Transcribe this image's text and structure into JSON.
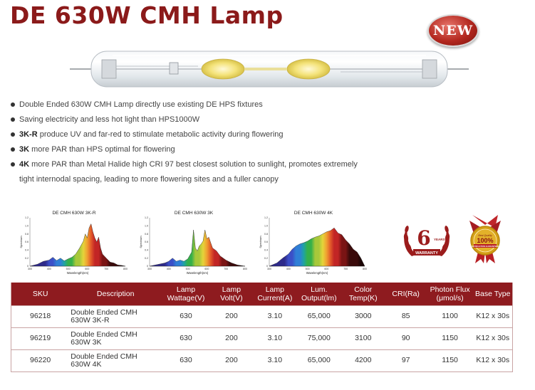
{
  "header": {
    "title": "DE 630W CMH Lamp",
    "badge": "NEW"
  },
  "features": [
    {
      "bold": "",
      "text": "Double Ended 630W CMH Lamp directly use existing DE HPS fixtures"
    },
    {
      "bold": "",
      "text": "Saving electricity and less hot light than HPS1000W"
    },
    {
      "bold": "3K-R",
      "text": " produce UV and far-red to stimulate metabolic activity during flowering"
    },
    {
      "bold": "3K",
      "text": " more PAR than HPS optimal for flowering"
    },
    {
      "bold": "4K",
      "text": " more PAR than Metal Halide high CRI 97 best closest solution to sunlight, promotes extremely"
    }
  ],
  "feature_continuation": "tight internodal spacing, leading to more flowering sites and a fuller canopy",
  "badges": {
    "warranty_number": "6",
    "warranty_unit": "YEARS",
    "warranty_text": "WARRANTY",
    "quality_top": "Best Quality",
    "quality_pct": "100%",
    "quality_bottom": "SATISFACTION GUARANTEED"
  },
  "chart_data": [
    {
      "type": "area",
      "title": "DE CMH 630W 3K-R",
      "xlabel": "Wavelength(nm)",
      "ylabel": "Spectrum",
      "x_ticks": [
        300,
        400,
        500,
        600,
        700,
        800
      ],
      "y_ticks": [
        "0",
        "0.2",
        "0.4",
        "0.6",
        "0.8",
        "1.0",
        "1.2"
      ],
      "xlim": [
        300,
        800
      ],
      "ylim": [
        0,
        1.2
      ],
      "x": [
        300,
        340,
        370,
        400,
        420,
        440,
        460,
        480,
        500,
        520,
        540,
        560,
        580,
        590,
        600,
        610,
        620,
        630,
        640,
        650,
        660,
        670,
        680,
        700,
        720,
        740,
        760,
        780,
        800
      ],
      "y": [
        0.0,
        0.05,
        0.12,
        0.15,
        0.22,
        0.14,
        0.2,
        0.13,
        0.18,
        0.22,
        0.3,
        0.45,
        0.62,
        0.8,
        0.7,
        0.95,
        1.05,
        0.85,
        0.7,
        0.6,
        0.72,
        0.45,
        0.3,
        0.2,
        0.1,
        0.08,
        0.03,
        0.02,
        0.0
      ]
    },
    {
      "type": "area",
      "title": "DE CMH 630W 3K",
      "xlabel": "Wavelength(nm)",
      "ylabel": "Spectrum",
      "x_ticks": [
        300,
        400,
        500,
        600,
        700,
        800
      ],
      "y_ticks": [
        "0",
        "0.2",
        "0.4",
        "0.6",
        "0.8",
        "1.0",
        "1.2"
      ],
      "xlim": [
        300,
        800
      ],
      "ylim": [
        0,
        1.2
      ],
      "x": [
        300,
        340,
        380,
        400,
        420,
        440,
        460,
        480,
        500,
        520,
        530,
        540,
        550,
        560,
        570,
        580,
        590,
        600,
        610,
        620,
        630,
        650,
        670,
        700,
        730,
        760,
        800
      ],
      "y": [
        0.0,
        0.04,
        0.08,
        0.12,
        0.2,
        0.12,
        0.15,
        0.12,
        0.18,
        0.35,
        0.9,
        0.45,
        0.38,
        0.5,
        0.55,
        0.62,
        0.9,
        0.68,
        0.72,
        0.58,
        0.45,
        0.38,
        0.25,
        0.15,
        0.08,
        0.03,
        0.0
      ]
    },
    {
      "type": "area",
      "title": "DE CMH 630W 4K",
      "xlabel": "Wavelength(nm)",
      "ylabel": "Spectrum",
      "x_ticks": [
        300,
        400,
        500,
        600,
        700,
        800
      ],
      "y_ticks": [
        "0",
        "0.2",
        "0.4",
        "0.6",
        "0.8",
        "1.0",
        "1.2"
      ],
      "xlim": [
        300,
        800
      ],
      "ylim": [
        0,
        1.2
      ],
      "x": [
        300,
        340,
        370,
        400,
        420,
        440,
        460,
        480,
        500,
        520,
        540,
        560,
        580,
        600,
        620,
        640,
        660,
        680,
        700,
        720,
        740,
        760,
        780,
        800
      ],
      "y": [
        0.0,
        0.08,
        0.2,
        0.3,
        0.42,
        0.5,
        0.55,
        0.58,
        0.62,
        0.68,
        0.72,
        0.75,
        0.8,
        0.85,
        0.88,
        0.95,
        0.82,
        0.78,
        0.65,
        0.55,
        0.42,
        0.35,
        0.2,
        0.0
      ]
    }
  ],
  "table": {
    "headers": [
      "SKU",
      "Description",
      "Lamp\nWattage(V)",
      "Lamp\nVolt(V)",
      "Lamp\nCurrent(A)",
      "Lum.\nOutput(lm)",
      "Color\nTemp(K)",
      "CRI(Ra)",
      "Photon Flux\n(μmol/s)",
      "Base Type"
    ],
    "rows": [
      [
        "96218",
        "Double Ended CMH\n630W 3K-R",
        "630",
        "200",
        "3.10",
        "65,000",
        "3000",
        "85",
        "1100",
        "K12 x 30s"
      ],
      [
        "96219",
        "Double Ended CMH\n630W 3K",
        "630",
        "200",
        "3.10",
        "75,000",
        "3100",
        "90",
        "1150",
        "K12 x 30s"
      ],
      [
        "96220",
        "Double Ended CMH\n630W 4K",
        "630",
        "200",
        "3.10",
        "65,000",
        "4200",
        "97",
        "1150",
        "K12 x 30s"
      ]
    ]
  },
  "colors": {
    "brand": "#8b1a1a",
    "table_header": "#8e1b1f"
  }
}
